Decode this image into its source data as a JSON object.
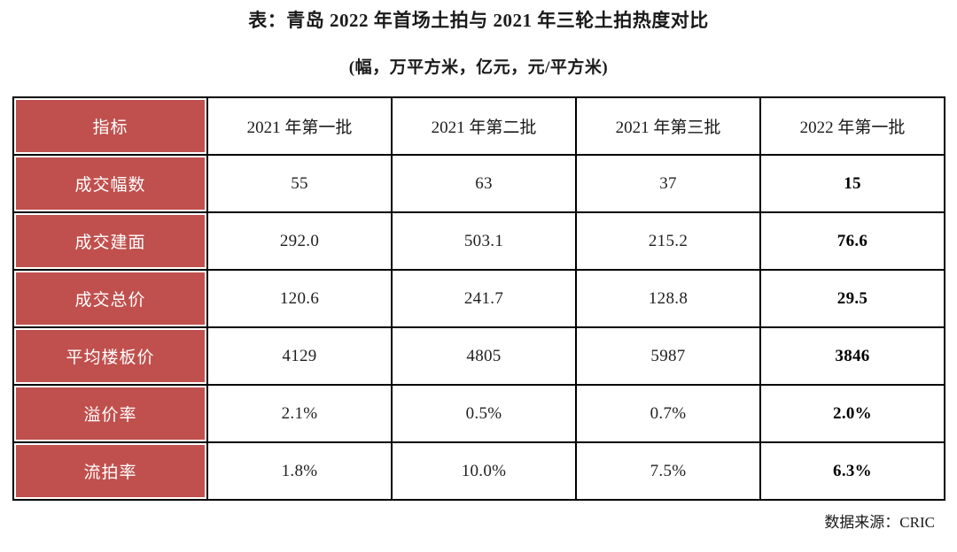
{
  "colors": {
    "label_cell_bg": "#C0504D",
    "label_cell_text": "#FFFFFF",
    "grid_border": "#000000",
    "page_bg": "#FFFFFF"
  },
  "chart_data": {
    "type": "table",
    "title": "表：青岛 2022 年首场土拍与 2021 年三轮土拍热度对比",
    "subtitle": "(幅，万平方米，亿元，元/平方米)",
    "columns": [
      "指标",
      "2021 年第一批",
      "2021 年第二批",
      "2021 年第三批",
      "2022 年第一批"
    ],
    "rows": [
      {
        "label": "成交幅数",
        "values": [
          "55",
          "63",
          "37",
          "15"
        ]
      },
      {
        "label": "成交建面",
        "values": [
          "292.0",
          "503.1",
          "215.2",
          "76.6"
        ]
      },
      {
        "label": "成交总价",
        "values": [
          "120.6",
          "241.7",
          "128.8",
          "29.5"
        ]
      },
      {
        "label": "平均楼板价",
        "values": [
          "4129",
          "4805",
          "5987",
          "3846"
        ]
      },
      {
        "label": "溢价率",
        "values": [
          "2.1%",
          "0.5%",
          "0.7%",
          "2.0%"
        ]
      },
      {
        "label": "流拍率",
        "values": [
          "1.8%",
          "10.0%",
          "7.5%",
          "6.3%"
        ]
      }
    ],
    "highlight_column_index": 3,
    "source": "数据来源：CRIC",
    "layout": {
      "grid": true,
      "label_column_position": "left",
      "source_position": "bottom-right"
    }
  }
}
